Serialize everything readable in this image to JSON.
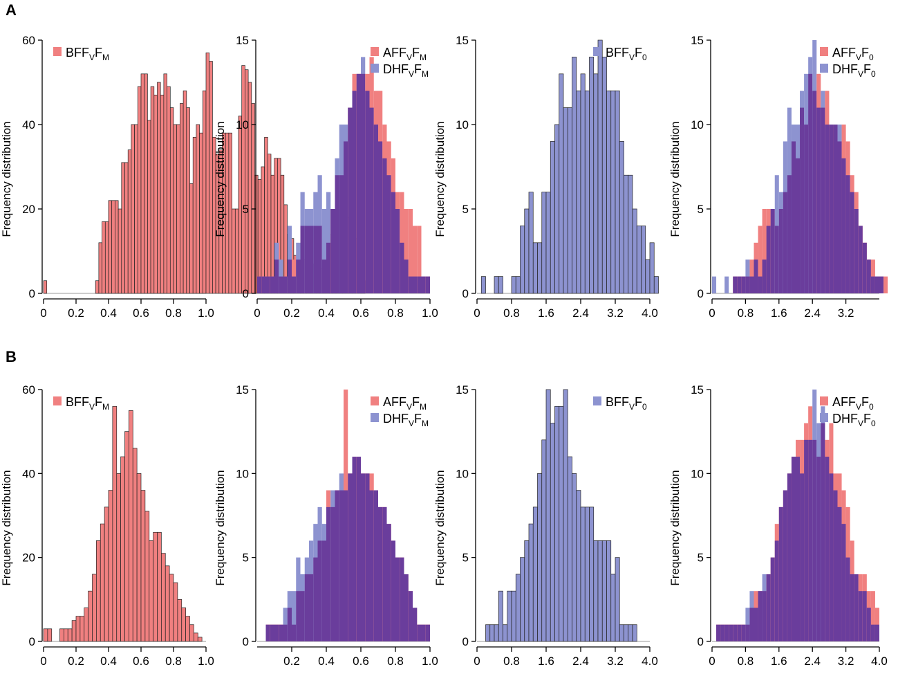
{
  "panel_labels": [
    "A",
    "B"
  ],
  "colors": {
    "red": "#f08080",
    "blue": "#8d93d0",
    "overlap": "#6a3d9c",
    "edge": "#222222",
    "axis": "#000000"
  },
  "chart_data": [
    {
      "type": "bar",
      "row": "A",
      "ylabel": "Frequency distribution",
      "yticks": [
        0,
        20,
        40,
        60
      ],
      "ylim": [
        0,
        62
      ],
      "xlim": [
        0,
        1
      ],
      "xticks": [
        0,
        0.2,
        0.4,
        0.6,
        0.8,
        1.0
      ],
      "xtick_labels": [
        "0",
        "0.2",
        "0.4",
        "0.6",
        "0.8",
        "1.0"
      ],
      "bin_start": 0.01,
      "bin_width": 0.02,
      "series": [
        {
          "name": "BFF",
          "sub": "V",
          "suffix": "F",
          "sub2": "M",
          "color": "red",
          "values": [
            3,
            0,
            0,
            0,
            0,
            0,
            0,
            0,
            0,
            0,
            0,
            0,
            0,
            0,
            0,
            0,
            3,
            12,
            17,
            17,
            22,
            22,
            22,
            20,
            31,
            31,
            34,
            40,
            40,
            49,
            52,
            52,
            41,
            49,
            47,
            50,
            47,
            52,
            49,
            44,
            40,
            40,
            45,
            48,
            44,
            26,
            37,
            40,
            38,
            48,
            57,
            55,
            37,
            33,
            34,
            38,
            38,
            38,
            20,
            20,
            42,
            54,
            53,
            50,
            45,
            28,
            27,
            30,
            37,
            33,
            28,
            32,
            32,
            28,
            21,
            14,
            13,
            9,
            9,
            8,
            8,
            9,
            7,
            7,
            7,
            6,
            7,
            5,
            14,
            17,
            18,
            20,
            19,
            18,
            16,
            15,
            13,
            12,
            3,
            0
          ]
        }
      ]
    },
    {
      "type": "bar",
      "row": "A",
      "ylabel": "Frequency distribution",
      "yticks": [
        0,
        5,
        10,
        15
      ],
      "ylim": [
        0,
        15.5
      ],
      "xlim": [
        0,
        1
      ],
      "xticks": [
        0,
        0.2,
        0.4,
        0.6,
        0.8,
        1.0
      ],
      "xtick_labels": [
        "0",
        "0.2",
        "0.4",
        "0.6",
        "0.8",
        "1.0"
      ],
      "bin_start": 0.0125,
      "bin_width": 0.025,
      "series": [
        {
          "name": "AFF",
          "sub": "V",
          "suffix": "F",
          "sub2": "M",
          "color": "red",
          "values": [
            1,
            1,
            1,
            1,
            2,
            1,
            1,
            2,
            2,
            2,
            4,
            4,
            4,
            4,
            4,
            2,
            3,
            5,
            7,
            7,
            9,
            11,
            13,
            13,
            13,
            13,
            14,
            12,
            12,
            10,
            9,
            8,
            6,
            6,
            5,
            5,
            4,
            4,
            1,
            1
          ]
        },
        {
          "name": "DHF",
          "sub": "V",
          "suffix": "F",
          "sub2": "M",
          "color": "blue",
          "values": [
            1,
            1,
            1,
            1,
            3,
            2,
            1,
            4,
            1,
            3,
            6,
            5,
            5,
            6,
            7,
            5,
            6,
            5,
            8,
            10,
            10,
            11,
            12,
            13,
            14,
            12,
            11,
            10,
            9,
            8,
            7,
            6,
            5,
            3,
            2,
            1,
            1,
            1,
            1,
            1
          ]
        }
      ]
    },
    {
      "type": "bar",
      "row": "A",
      "ylabel": "Frequency distribution",
      "yticks": [
        0,
        5,
        10,
        15
      ],
      "ylim": [
        0,
        15.5
      ],
      "xlim": [
        0,
        4
      ],
      "xticks": [
        0,
        0.8,
        1.6,
        2.4,
        3.2,
        4.0
      ],
      "xtick_labels": [
        "0",
        "0.8",
        "1.6",
        "2.4",
        "3.2",
        "4.0"
      ],
      "bin_start": 0.05,
      "bin_width": 0.1,
      "series": [
        {
          "name": "BFF",
          "sub": "V",
          "suffix": "F",
          "sub2": "0",
          "color": "blue",
          "values": [
            0,
            1,
            0,
            0,
            1,
            1,
            0,
            0,
            1,
            1,
            4,
            5,
            6,
            3,
            3,
            6,
            6,
            9,
            10,
            13,
            11,
            11,
            14,
            12,
            13,
            12,
            14,
            13,
            15,
            14,
            12,
            12,
            12,
            9,
            7,
            7,
            5,
            4,
            4,
            2,
            3,
            1,
            0
          ]
        }
      ]
    },
    {
      "type": "bar",
      "row": "A",
      "ylabel": "Frequency distribution",
      "yticks": [
        0,
        5,
        10,
        15
      ],
      "ylim": [
        0,
        15.5
      ],
      "xlim": [
        0,
        4
      ],
      "xticks": [
        0,
        0.8,
        1.6,
        2.4,
        3.2
      ],
      "xtick_labels": [
        "0",
        "0.8",
        "1.6",
        "2.4",
        "3.2"
      ],
      "bin_start": 0.05,
      "bin_width": 0.1,
      "series": [
        {
          "name": "AFF",
          "sub": "V",
          "suffix": "F",
          "sub2": "0",
          "color": "red",
          "values": [
            0,
            0,
            0,
            0,
            0,
            1,
            1,
            1,
            1,
            2,
            3,
            4,
            5,
            5,
            5,
            4,
            5,
            6,
            7,
            9,
            8,
            11,
            10,
            13,
            12,
            13,
            11,
            12,
            10,
            10,
            9,
            10,
            9,
            7,
            6,
            4,
            3,
            2,
            2,
            1,
            1,
            1
          ]
        },
        {
          "name": "DHF",
          "sub": "V",
          "suffix": "F",
          "sub2": "0",
          "color": "blue",
          "values": [
            1,
            0,
            0,
            1,
            0,
            1,
            1,
            1,
            2,
            1,
            2,
            1,
            2,
            4,
            5,
            7,
            6,
            9,
            11,
            10,
            10,
            12,
            13,
            14,
            15,
            11,
            12,
            10,
            10,
            10,
            10,
            8,
            7,
            6,
            5,
            4,
            3,
            2,
            1,
            1,
            1,
            0
          ]
        }
      ]
    },
    {
      "type": "bar",
      "row": "B",
      "ylabel": "Frequency distribution",
      "yticks": [
        0,
        20,
        40,
        60
      ],
      "ylim": [
        0,
        62
      ],
      "xlim": [
        0,
        1
      ],
      "xticks": [
        0,
        0.2,
        0.4,
        0.6,
        0.8,
        1.0
      ],
      "xtick_labels": [
        "0",
        "0.2",
        "0.4",
        "0.6",
        "0.8",
        "1.0"
      ],
      "bin_start": 0.0125,
      "bin_width": 0.025,
      "series": [
        {
          "name": "BFF",
          "sub": "V",
          "suffix": "F",
          "sub2": "M",
          "color": "red",
          "values": [
            3,
            3,
            0,
            0,
            3,
            3,
            3,
            5,
            6,
            6,
            8,
            12,
            16,
            24,
            28,
            32,
            36,
            56,
            40,
            44,
            50,
            55,
            46,
            40,
            36,
            31,
            24,
            26,
            26,
            21,
            18,
            16,
            14,
            10,
            8,
            6,
            4,
            2,
            1,
            0
          ]
        }
      ]
    },
    {
      "type": "bar",
      "row": "B",
      "ylabel": "Frequency distribution",
      "yticks": [
        0,
        5,
        10,
        15
      ],
      "ylim": [
        0,
        15.5
      ],
      "xlim": [
        0,
        1
      ],
      "xticks": [
        0.2,
        0.4,
        0.6,
        0.8,
        1.0
      ],
      "xtick_labels": [
        "0.2",
        "0.4",
        "0.6",
        "0.8",
        "1.0"
      ],
      "bin_start": 0.0125,
      "bin_width": 0.025,
      "series": [
        {
          "name": "AFF",
          "sub": "V",
          "suffix": "F",
          "sub2": "M",
          "color": "red",
          "values": [
            0,
            0,
            1,
            1,
            1,
            1,
            1,
            2,
            1,
            3,
            3,
            4,
            4,
            5,
            6,
            6,
            9,
            8,
            9,
            9,
            15,
            10,
            11,
            11,
            10,
            10,
            10,
            9,
            8,
            8,
            7,
            6,
            5,
            5,
            4,
            3,
            2,
            1,
            1,
            1
          ]
        },
        {
          "name": "DHF",
          "sub": "V",
          "suffix": "F",
          "sub2": "M",
          "color": "blue",
          "values": [
            0,
            0,
            1,
            1,
            1,
            1,
            2,
            3,
            3,
            5,
            4,
            5,
            6,
            7,
            8,
            7,
            8,
            9,
            9,
            10,
            9,
            10,
            11,
            11,
            10,
            10,
            9,
            9,
            8,
            8,
            7,
            6,
            5,
            5,
            4,
            3,
            2,
            1,
            1,
            1
          ]
        }
      ]
    },
    {
      "type": "bar",
      "row": "B",
      "ylabel": "Frequency distribution",
      "yticks": [
        0,
        5,
        10,
        15
      ],
      "ylim": [
        0,
        15.5
      ],
      "xlim": [
        0,
        4
      ],
      "xticks": [
        0,
        0.8,
        1.6,
        2.4,
        3.2,
        4.0
      ],
      "xtick_labels": [
        "0",
        "0.8",
        "1.6",
        "2.4",
        "3.2",
        "4.0"
      ],
      "bin_start": 0.05,
      "bin_width": 0.1,
      "series": [
        {
          "name": "BFF",
          "sub": "V",
          "suffix": "F",
          "sub2": "0",
          "color": "blue",
          "values": [
            0,
            0,
            1,
            1,
            1,
            3,
            1,
            3,
            3,
            4,
            5,
            6,
            7,
            8,
            10,
            12,
            15,
            13,
            14,
            14,
            15,
            11,
            10,
            9,
            8,
            8,
            8,
            6,
            6,
            6,
            6,
            4,
            5,
            1,
            1,
            1,
            1,
            0,
            0,
            0
          ]
        }
      ]
    },
    {
      "type": "bar",
      "row": "B",
      "ylabel": "Frequency distribution",
      "yticks": [
        0,
        5,
        10,
        15
      ],
      "ylim": [
        0,
        15.5
      ],
      "xlim": [
        0,
        4
      ],
      "xticks": [
        0,
        0.8,
        1.6,
        2.4,
        3.2,
        4.0
      ],
      "xtick_labels": [
        "0",
        "0.8",
        "1.6",
        "2.4",
        "3.2",
        "4.0"
      ],
      "bin_start": 0.05,
      "bin_width": 0.1,
      "series": [
        {
          "name": "AFF",
          "sub": "V",
          "suffix": "F",
          "sub2": "0",
          "color": "red",
          "values": [
            0,
            1,
            1,
            1,
            1,
            1,
            1,
            1,
            1,
            2,
            3,
            3,
            3,
            4,
            5,
            7,
            8,
            9,
            10,
            11,
            12,
            12,
            13,
            14,
            12,
            11,
            13,
            12,
            13,
            10,
            10,
            9,
            8,
            6,
            4,
            4,
            4,
            3,
            3,
            2
          ]
        },
        {
          "name": "DHF",
          "sub": "V",
          "suffix": "F",
          "sub2": "0",
          "color": "blue",
          "values": [
            0,
            1,
            1,
            1,
            1,
            1,
            1,
            1,
            2,
            3,
            2,
            3,
            4,
            4,
            5,
            6,
            8,
            9,
            10,
            11,
            11,
            10,
            12,
            12,
            15,
            13,
            14,
            11,
            10,
            9,
            8,
            7,
            5,
            4,
            4,
            3,
            3,
            2,
            1,
            1
          ]
        }
      ]
    }
  ]
}
